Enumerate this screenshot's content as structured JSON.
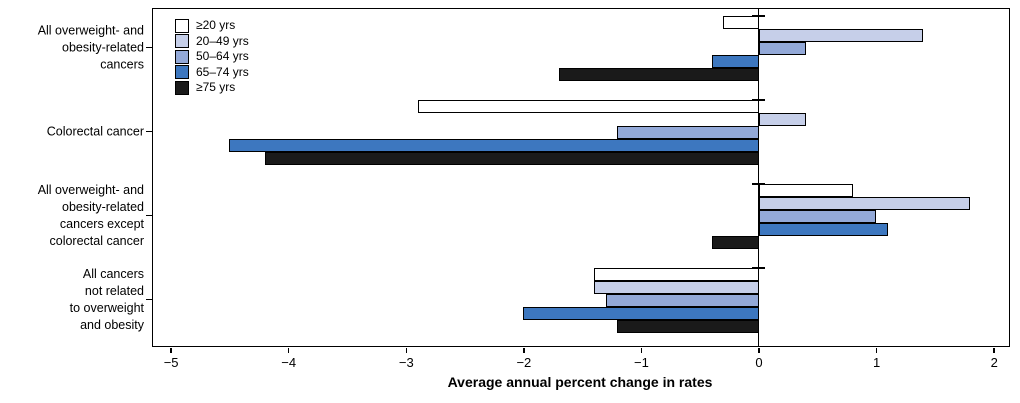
{
  "chart_data": {
    "type": "bar",
    "orientation": "horizontal",
    "title": "",
    "xlabel": "Average annual percent change in rates",
    "ylabel": "",
    "xlim": [
      -5.15,
      2.13
    ],
    "x_ticks": [
      -5,
      -4,
      -3,
      -2,
      -1,
      0,
      1,
      2
    ],
    "x_tick_labels": [
      "−5",
      "−4",
      "−3",
      "−2",
      "−1",
      "0",
      "1",
      "2"
    ],
    "grid": false,
    "legend_position": "top-left-inside",
    "bar_border_color": "#000000",
    "frame_color": "#000000",
    "categories": [
      "All overweight- and obesity-related cancers",
      "Colorectal cancer",
      "All overweight- and obesity-related cancers except colorectal cancer",
      "All cancers not related to overweight and obesity"
    ],
    "category_label_lines": [
      [
        "All overweight- and",
        "obesity-related",
        "cancers"
      ],
      [
        "Colorectal cancer"
      ],
      [
        "All overweight- and",
        "obesity-related",
        "cancers except",
        "colorectal cancer"
      ],
      [
        "All cancers",
        "not related",
        "to overweight",
        "and obesity"
      ]
    ],
    "series": [
      {
        "name": "≥20 yrs",
        "color": "#ffffff",
        "values": [
          -0.3,
          -2.9,
          0.8,
          -1.4
        ]
      },
      {
        "name": "20–49 yrs",
        "color": "#c6cfe9",
        "values": [
          1.4,
          0.4,
          1.8,
          -1.4
        ]
      },
      {
        "name": "50–64 yrs",
        "color": "#93a9d8",
        "values": [
          0.4,
          -1.2,
          1.0,
          -1.3
        ]
      },
      {
        "name": "65–74 yrs",
        "color": "#3d77bf",
        "values": [
          -0.4,
          -4.5,
          1.1,
          -2.0
        ]
      },
      {
        "name": "≥75 yrs",
        "color": "#1a1a1a",
        "values": [
          -1.7,
          -4.2,
          -0.4,
          -1.2
        ]
      }
    ]
  }
}
